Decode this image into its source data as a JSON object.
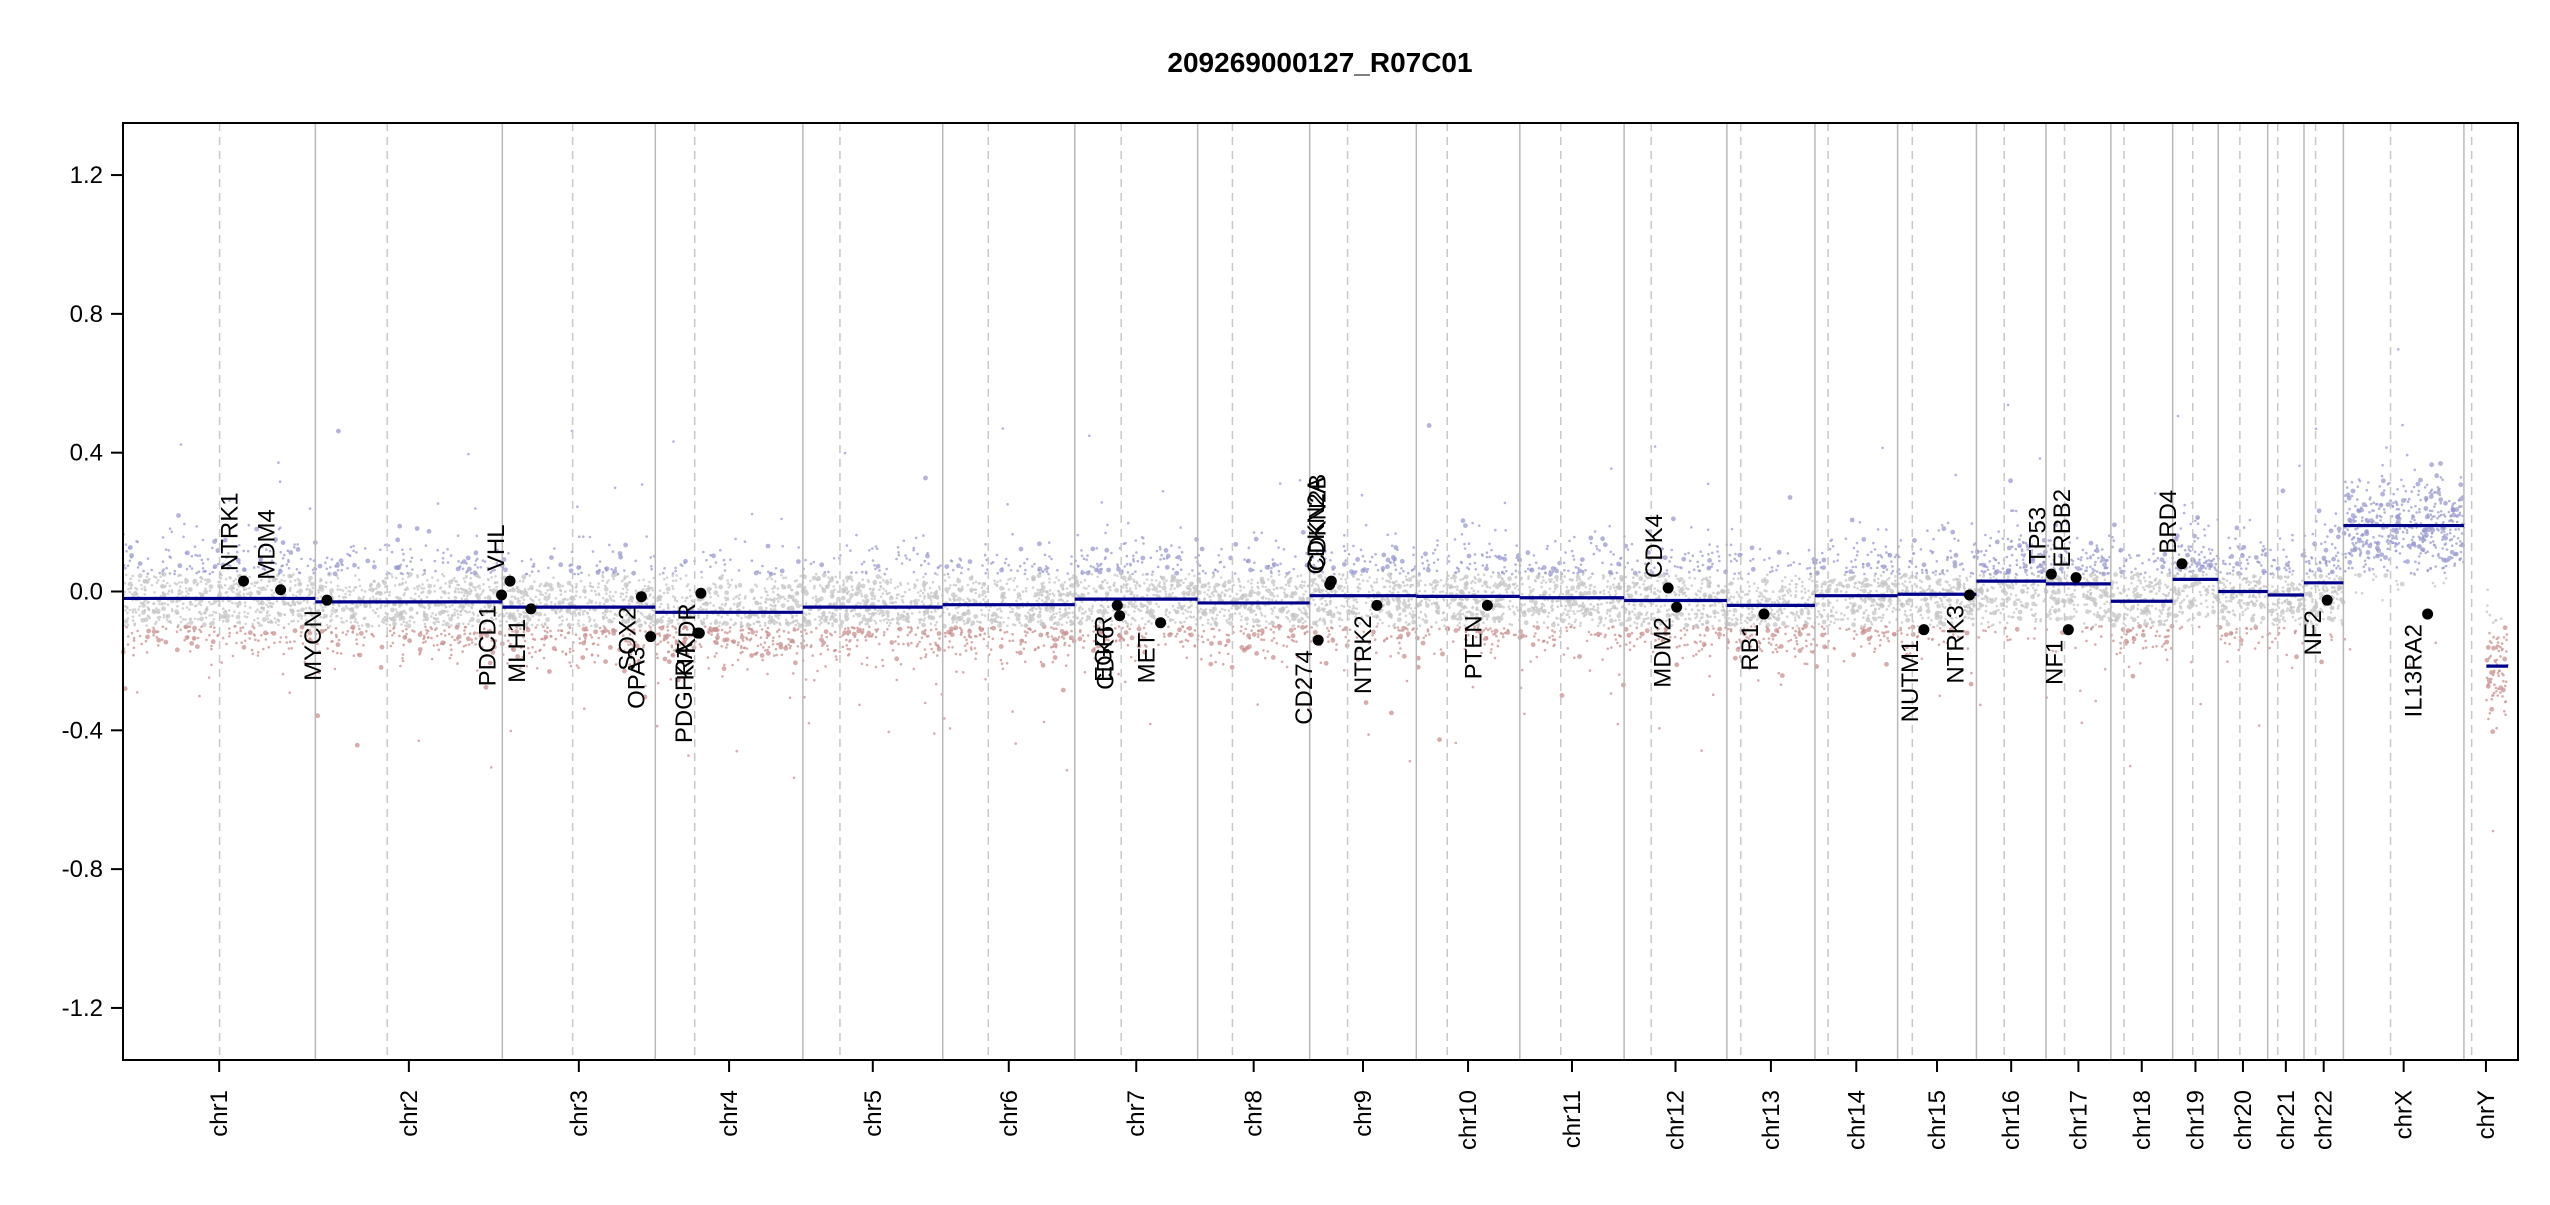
{
  "chart_data": {
    "type": "scatter",
    "title": "209269000127_R07C01",
    "xlabel": "",
    "ylabel": "",
    "ylim": [
      -1.35,
      1.35
    ],
    "y_ticks": [
      -1.2,
      -0.8,
      -0.4,
      0.0,
      0.4,
      0.8,
      1.2
    ],
    "y_tick_labels": [
      "-1.2",
      "-0.8",
      "-0.4",
      "0.0",
      "0.4",
      "0.8",
      "1.2"
    ],
    "xlim": [
      0,
      3100
    ],
    "grid": false,
    "colors": {
      "segment": "#00008b",
      "gain_points": "#9a9ad0",
      "neutral_points": "#c4c4c4",
      "loss_points": "#c89090",
      "gene_points": "#000000",
      "chr_boundary": "#b8b8b8",
      "centromere": "#c8c8c8"
    },
    "chromosomes": [
      {
        "name": "chr1",
        "label": "chr1",
        "start": 0,
        "end": 249,
        "centromere": 125
      },
      {
        "name": "chr2",
        "label": "chr2",
        "start": 249,
        "end": 491,
        "centromere": 342
      },
      {
        "name": "chr3",
        "label": "chr3",
        "start": 491,
        "end": 689,
        "centromere": 582
      },
      {
        "name": "chr4",
        "label": "chr4",
        "start": 689,
        "end": 880,
        "centromere": 740
      },
      {
        "name": "chr5",
        "label": "chr5",
        "start": 880,
        "end": 1061,
        "centromere": 928
      },
      {
        "name": "chr6",
        "label": "chr6",
        "start": 1061,
        "end": 1232,
        "centromere": 1120
      },
      {
        "name": "chr7",
        "label": "chr7",
        "start": 1232,
        "end": 1391,
        "centromere": 1292
      },
      {
        "name": "chr8",
        "label": "chr8",
        "start": 1391,
        "end": 1536,
        "centromere": 1436
      },
      {
        "name": "chr9",
        "label": "chr9",
        "start": 1536,
        "end": 1674,
        "centromere": 1585
      },
      {
        "name": "chr10",
        "label": "chr10",
        "start": 1674,
        "end": 1808,
        "centromere": 1714
      },
      {
        "name": "chr11",
        "label": "chr11",
        "start": 1808,
        "end": 1943,
        "centromere": 1861
      },
      {
        "name": "chr12",
        "label": "chr12",
        "start": 1943,
        "end": 2076,
        "centromere": 1978
      },
      {
        "name": "chr13",
        "label": "chr13",
        "start": 2076,
        "end": 2190,
        "centromere": 2094
      },
      {
        "name": "chr14",
        "label": "chr14",
        "start": 2190,
        "end": 2297,
        "centromere": 2207
      },
      {
        "name": "chr15",
        "label": "chr15",
        "start": 2297,
        "end": 2399,
        "centromere": 2316
      },
      {
        "name": "chr16",
        "label": "chr16",
        "start": 2399,
        "end": 2489,
        "centromere": 2435
      },
      {
        "name": "chr17",
        "label": "chr17",
        "start": 2489,
        "end": 2573,
        "centromere": 2513
      },
      {
        "name": "chr18",
        "label": "chr18",
        "start": 2573,
        "end": 2653,
        "centromere": 2590
      },
      {
        "name": "chr19",
        "label": "chr19",
        "start": 2653,
        "end": 2712,
        "centromere": 2679
      },
      {
        "name": "chr20",
        "label": "chr20",
        "start": 2712,
        "end": 2776,
        "centromere": 2740
      },
      {
        "name": "chr21",
        "label": "chr21",
        "start": 2776,
        "end": 2823,
        "centromere": 2789
      },
      {
        "name": "chr22",
        "label": "chr22",
        "start": 2823,
        "end": 2874,
        "centromere": 2838
      },
      {
        "name": "chrX",
        "label": "chrX",
        "start": 2874,
        "end": 3030,
        "centromere": 2935
      },
      {
        "name": "chrY",
        "label": "chrY",
        "start": 3030,
        "end": 3087,
        "centromere": 3040
      }
    ],
    "segments": [
      {
        "x0": 0,
        "x1": 249,
        "y": -0.02
      },
      {
        "x0": 249,
        "x1": 491,
        "y": -0.03
      },
      {
        "x0": 491,
        "x1": 689,
        "y": -0.045
      },
      {
        "x0": 689,
        "x1": 880,
        "y": -0.06
      },
      {
        "x0": 880,
        "x1": 1061,
        "y": -0.045
      },
      {
        "x0": 1061,
        "x1": 1232,
        "y": -0.038
      },
      {
        "x0": 1232,
        "x1": 1391,
        "y": -0.022
      },
      {
        "x0": 1391,
        "x1": 1536,
        "y": -0.033
      },
      {
        "x0": 1536,
        "x1": 1674,
        "y": -0.012
      },
      {
        "x0": 1674,
        "x1": 1808,
        "y": -0.014
      },
      {
        "x0": 1808,
        "x1": 1943,
        "y": -0.018
      },
      {
        "x0": 1943,
        "x1": 2076,
        "y": -0.026
      },
      {
        "x0": 2076,
        "x1": 2190,
        "y": -0.04
      },
      {
        "x0": 2190,
        "x1": 2297,
        "y": -0.012
      },
      {
        "x0": 2297,
        "x1": 2399,
        "y": -0.008
      },
      {
        "x0": 2399,
        "x1": 2489,
        "y": 0.03
      },
      {
        "x0": 2489,
        "x1": 2573,
        "y": 0.022
      },
      {
        "x0": 2573,
        "x1": 2653,
        "y": -0.028
      },
      {
        "x0": 2653,
        "x1": 2712,
        "y": 0.035
      },
      {
        "x0": 2712,
        "x1": 2776,
        "y": 0.0
      },
      {
        "x0": 2776,
        "x1": 2823,
        "y": -0.01
      },
      {
        "x0": 2823,
        "x1": 2874,
        "y": 0.025
      },
      {
        "x0": 2874,
        "x1": 3030,
        "y": 0.19
      },
      {
        "x0": 3059,
        "x1": 3087,
        "y": -0.215
      }
    ],
    "genes": [
      {
        "name": "NTRK1",
        "x": 156,
        "y": 0.03,
        "label_side": "above"
      },
      {
        "name": "MDM4",
        "x": 204,
        "y": 0.005,
        "label_side": "above"
      },
      {
        "name": "MYCN",
        "x": 264,
        "y": -0.025,
        "label_side": "below"
      },
      {
        "name": "PDCD1",
        "x": 490,
        "y": -0.01,
        "label_side": "below"
      },
      {
        "name": "VHL",
        "x": 501,
        "y": 0.03,
        "label_side": "above"
      },
      {
        "name": "MLH1",
        "x": 528,
        "y": -0.05,
        "label_side": "below"
      },
      {
        "name": "SOX2",
        "x": 671,
        "y": -0.015,
        "label_side": "below"
      },
      {
        "name": "OPA3",
        "x": 683,
        "y": -0.13,
        "label_side": "below"
      },
      {
        "name": "PDGFRA",
        "x": 744,
        "y": -0.12,
        "label_side": "below"
      },
      {
        "name": "KIT",
        "x": 746,
        "y": -0.12,
        "label_side": "below"
      },
      {
        "name": "KDR",
        "x": 748,
        "y": -0.005,
        "label_side": "below"
      },
      {
        "name": "EGFR",
        "x": 1287,
        "y": -0.04,
        "label_side": "below"
      },
      {
        "name": "CDK6",
        "x": 1290,
        "y": -0.07,
        "label_side": "below"
      },
      {
        "name": "MET",
        "x": 1343,
        "y": -0.09,
        "label_side": "below"
      },
      {
        "name": "CD274",
        "x": 1547,
        "y": -0.14,
        "label_side": "below"
      },
      {
        "name": "CDKN2A",
        "x": 1562,
        "y": 0.02,
        "label_side": "above"
      },
      {
        "name": "CDKN2B",
        "x": 1564,
        "y": 0.03,
        "label_side": "above"
      },
      {
        "name": "NTRK2",
        "x": 1623,
        "y": -0.04,
        "label_side": "below"
      },
      {
        "name": "PTEN",
        "x": 1766,
        "y": -0.04,
        "label_side": "below"
      },
      {
        "name": "CDK4",
        "x": 2000,
        "y": 0.01,
        "label_side": "above"
      },
      {
        "name": "MDM2",
        "x": 2011,
        "y": -0.045,
        "label_side": "below"
      },
      {
        "name": "RB1",
        "x": 2124,
        "y": -0.065,
        "label_side": "below"
      },
      {
        "name": "NUTM1",
        "x": 2331,
        "y": -0.11,
        "label_side": "below"
      },
      {
        "name": "NTRK3",
        "x": 2390,
        "y": -0.01,
        "label_side": "below"
      },
      {
        "name": "TP53",
        "x": 2496,
        "y": 0.05,
        "label_side": "above"
      },
      {
        "name": "NF1",
        "x": 2518,
        "y": -0.11,
        "label_side": "below"
      },
      {
        "name": "ERBB2",
        "x": 2528,
        "y": 0.04,
        "label_side": "above"
      },
      {
        "name": "BRD4",
        "x": 2665,
        "y": 0.08,
        "label_side": "above"
      },
      {
        "name": "NF2",
        "x": 2853,
        "y": -0.025,
        "label_side": "below"
      },
      {
        "name": "IL13RA2",
        "x": 2983,
        "y": -0.065,
        "label_side": "below"
      }
    ]
  }
}
